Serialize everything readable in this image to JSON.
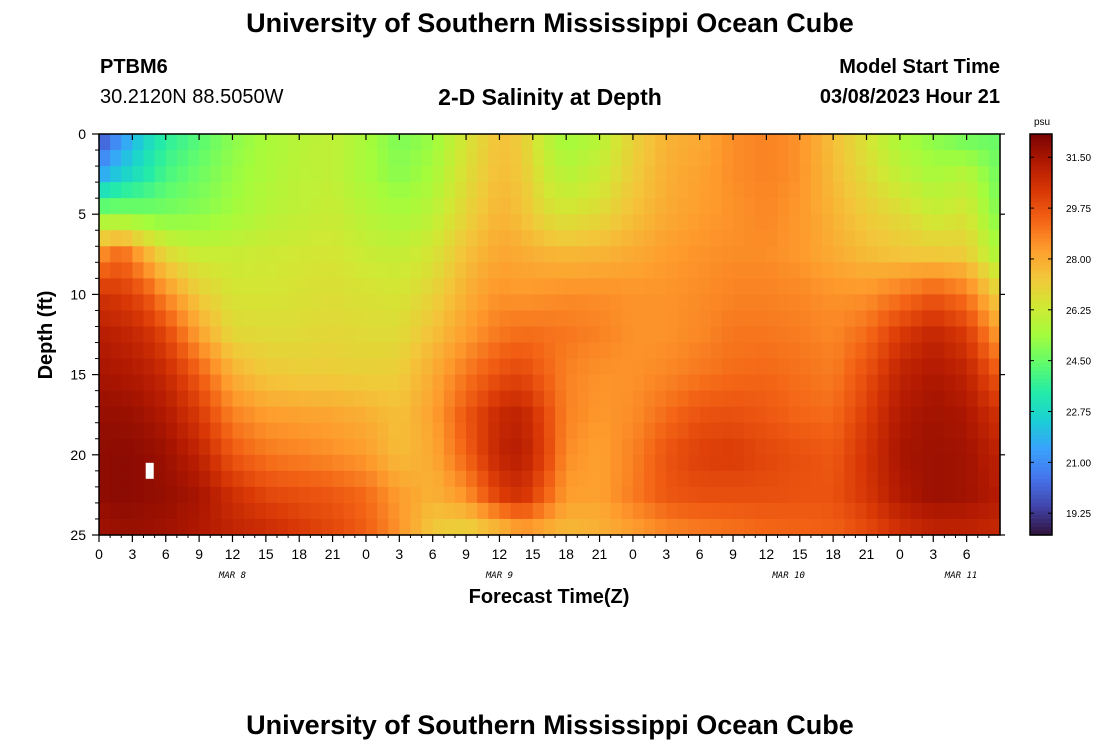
{
  "header": {
    "title": "University of Southern Mississippi Ocean Cube",
    "station": "PTBM6",
    "coordinates": "30.2120N  88.5050W",
    "product": "2-D Salinity at Depth",
    "model_start_label": "Model Start Time",
    "model_start_value": "03/08/2023 Hour 21"
  },
  "footer": {
    "title": "University of Southern Mississippi Ocean Cube"
  },
  "chart_data": {
    "type": "heatmap",
    "title": "2-D Salinity at Depth",
    "xlabel": "Forecast Time(Z)",
    "ylabel": "Depth (ft)",
    "x_range_hours": [
      0,
      81
    ],
    "x_tick_labels": [
      "0",
      "3",
      "6",
      "9",
      "12",
      "15",
      "18",
      "21",
      "0",
      "3",
      "6",
      "9",
      "12",
      "15",
      "18",
      "21",
      "0",
      "3",
      "6",
      "9",
      "12",
      "15",
      "18",
      "21",
      "0",
      "3",
      "6"
    ],
    "day_labels": [
      {
        "label": "MAR 8",
        "hour": 12
      },
      {
        "label": "MAR 9",
        "hour": 36
      },
      {
        "label": "MAR 10",
        "hour": 62
      },
      {
        "label": "MAR 11",
        "hour": 77.5
      }
    ],
    "y_range": [
      0,
      25
    ],
    "y_ticks": [
      0,
      5,
      10,
      15,
      20,
      25
    ],
    "y_inverted": true,
    "colorbar": {
      "unit": "psu",
      "min": 18.5,
      "max": 32.3,
      "ticks": [
        "31.50",
        "29.75",
        "28.00",
        "26.25",
        "24.50",
        "22.75",
        "21.00",
        "19.25"
      ],
      "colormap": [
        "#30123b",
        "#4145ab",
        "#4675ed",
        "#39a2fc",
        "#1bcfd4",
        "#24eca6",
        "#61fc6c",
        "#a4fc3b",
        "#d1e834",
        "#f3c63a",
        "#fe9b2d",
        "#f36315",
        "#d93806",
        "#b11901",
        "#7a0402"
      ]
    },
    "data_grid": {
      "description": "salinity (psu) by depth (rows, 0-25 ft) and forecast hour (cols, 0-81)",
      "hours": [
        0,
        2,
        4,
        6,
        9,
        12,
        15,
        18,
        21,
        24,
        27,
        30,
        33,
        36,
        38,
        40,
        42,
        45,
        48,
        51,
        54,
        57,
        60,
        63,
        66,
        69,
        72,
        75,
        78,
        81
      ],
      "depths": [
        0,
        2.5,
        5,
        7.5,
        10,
        12.5,
        15,
        17.5,
        20,
        22.5,
        25
      ],
      "values": [
        [
          19.5,
          21.0,
          22.5,
          23.5,
          24.2,
          25.0,
          25.5,
          25.8,
          26.0,
          25.5,
          24.8,
          25.2,
          26.5,
          27.5,
          27.2,
          26.0,
          25.3,
          25.8,
          27.0,
          27.8,
          28.0,
          28.6,
          28.8,
          28.5,
          27.5,
          26.5,
          25.5,
          25.0,
          24.5,
          24.5
        ],
        [
          21.5,
          22.5,
          23.2,
          24.0,
          24.6,
          25.2,
          25.6,
          25.9,
          26.0,
          25.5,
          25.0,
          25.5,
          26.7,
          27.6,
          27.3,
          26.3,
          25.8,
          26.2,
          27.2,
          27.9,
          28.2,
          28.6,
          28.8,
          28.5,
          27.6,
          26.8,
          26.0,
          25.5,
          25.8,
          24.6
        ],
        [
          25.0,
          25.0,
          24.8,
          24.8,
          25.0,
          25.4,
          25.8,
          26.0,
          26.2,
          25.8,
          25.5,
          25.9,
          27.0,
          27.8,
          27.5,
          26.8,
          26.5,
          26.8,
          27.5,
          28.0,
          28.3,
          28.5,
          28.7,
          28.4,
          27.8,
          27.2,
          26.8,
          26.2,
          26.5,
          24.8
        ],
        [
          28.5,
          29.3,
          28.0,
          26.8,
          26.2,
          26.2,
          26.3,
          26.4,
          26.5,
          26.2,
          26.1,
          26.5,
          27.5,
          28.1,
          28.0,
          27.8,
          27.7,
          27.8,
          28.0,
          28.3,
          28.5,
          28.6,
          28.6,
          28.4,
          28.0,
          27.6,
          27.4,
          27.3,
          27.2,
          25.5
        ],
        [
          30.5,
          30.3,
          29.8,
          28.6,
          27.2,
          26.5,
          26.5,
          26.6,
          26.7,
          26.6,
          26.5,
          27.0,
          27.9,
          28.5,
          28.4,
          28.5,
          28.6,
          28.6,
          28.5,
          28.5,
          28.6,
          28.8,
          28.8,
          28.7,
          28.5,
          28.5,
          29.0,
          29.6,
          29.0,
          27.0
        ],
        [
          31.2,
          31.0,
          30.7,
          30.0,
          28.2,
          26.9,
          26.8,
          26.8,
          26.9,
          26.8,
          26.8,
          27.5,
          28.3,
          29.0,
          29.2,
          29.1,
          29.0,
          28.8,
          28.5,
          28.5,
          28.7,
          29.0,
          29.0,
          28.9,
          28.7,
          29.2,
          30.3,
          30.9,
          30.3,
          28.2
        ],
        [
          31.5,
          31.4,
          31.2,
          30.8,
          29.5,
          27.9,
          27.3,
          27.2,
          27.2,
          27.1,
          27.2,
          28.0,
          29.0,
          29.8,
          30.0,
          29.4,
          28.8,
          28.5,
          28.5,
          28.7,
          29.0,
          29.2,
          29.3,
          29.1,
          28.9,
          29.8,
          31.0,
          31.4,
          31.0,
          29.5
        ],
        [
          31.8,
          31.8,
          31.6,
          31.3,
          30.3,
          28.8,
          28.3,
          28.2,
          28.1,
          27.9,
          27.5,
          28.2,
          29.6,
          30.8,
          31.0,
          30.0,
          28.8,
          28.4,
          28.6,
          29.2,
          29.7,
          29.8,
          29.6,
          29.3,
          29.2,
          30.2,
          31.3,
          31.6,
          31.4,
          30.5
        ],
        [
          31.9,
          32.0,
          31.9,
          31.7,
          31.0,
          29.6,
          29.0,
          28.8,
          28.6,
          28.3,
          27.6,
          28.0,
          29.4,
          31.0,
          31.2,
          30.2,
          28.6,
          28.2,
          28.8,
          29.7,
          30.2,
          30.3,
          30.0,
          29.8,
          29.6,
          30.5,
          31.5,
          31.7,
          31.6,
          31.0
        ],
        [
          31.9,
          32.0,
          31.9,
          31.8,
          31.5,
          30.6,
          30.0,
          29.8,
          29.6,
          29.2,
          28.3,
          27.8,
          28.5,
          30.2,
          30.6,
          29.5,
          28.3,
          28.2,
          28.9,
          29.6,
          29.8,
          29.8,
          29.8,
          29.7,
          29.7,
          30.4,
          31.3,
          31.7,
          31.6,
          31.2
        ],
        [
          31.6,
          31.7,
          31.7,
          31.6,
          31.3,
          31.0,
          30.8,
          30.4,
          30.0,
          29.5,
          28.5,
          27.2,
          26.8,
          27.3,
          28.0,
          27.8,
          27.6,
          27.8,
          28.2,
          28.6,
          28.8,
          29.0,
          29.2,
          29.3,
          29.4,
          29.8,
          30.5,
          30.9,
          30.9,
          30.8
        ]
      ]
    }
  }
}
